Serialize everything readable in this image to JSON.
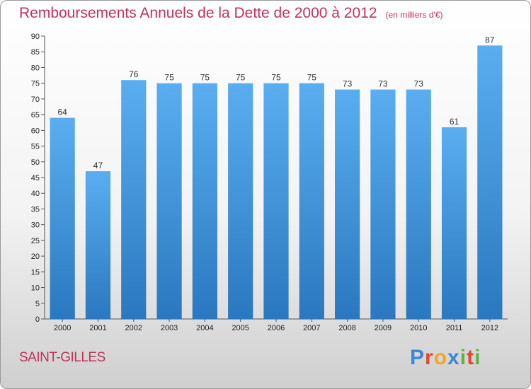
{
  "chart_data": {
    "type": "bar",
    "title": "Remboursements Annuels de la Dette de 2000 à 2012",
    "subtitle": "(en milliers d'€)",
    "categories": [
      "2000",
      "2001",
      "2002",
      "2003",
      "2004",
      "2005",
      "2006",
      "2007",
      "2008",
      "2009",
      "2010",
      "2011",
      "2012"
    ],
    "values": [
      64,
      47,
      76,
      75,
      75,
      75,
      75,
      75,
      73,
      73,
      73,
      61,
      87
    ],
    "ylim": [
      0,
      90
    ],
    "ytick_step": 5,
    "grid": false,
    "bar_color": "#3a8fd6"
  },
  "footer": {
    "commune": "SAINT-GILLES",
    "brand_letters": [
      {
        "ch": "P",
        "color": "#3b86d8"
      },
      {
        "ch": "r",
        "color": "#e8442e"
      },
      {
        "ch": "o",
        "color": "#f2a623"
      },
      {
        "ch": "x",
        "color": "#3b86d8"
      },
      {
        "ch": "i",
        "color": "#5ab545"
      },
      {
        "ch": "t",
        "color": "#e8442e"
      },
      {
        "ch": "i",
        "color": "#5ab545"
      }
    ]
  }
}
